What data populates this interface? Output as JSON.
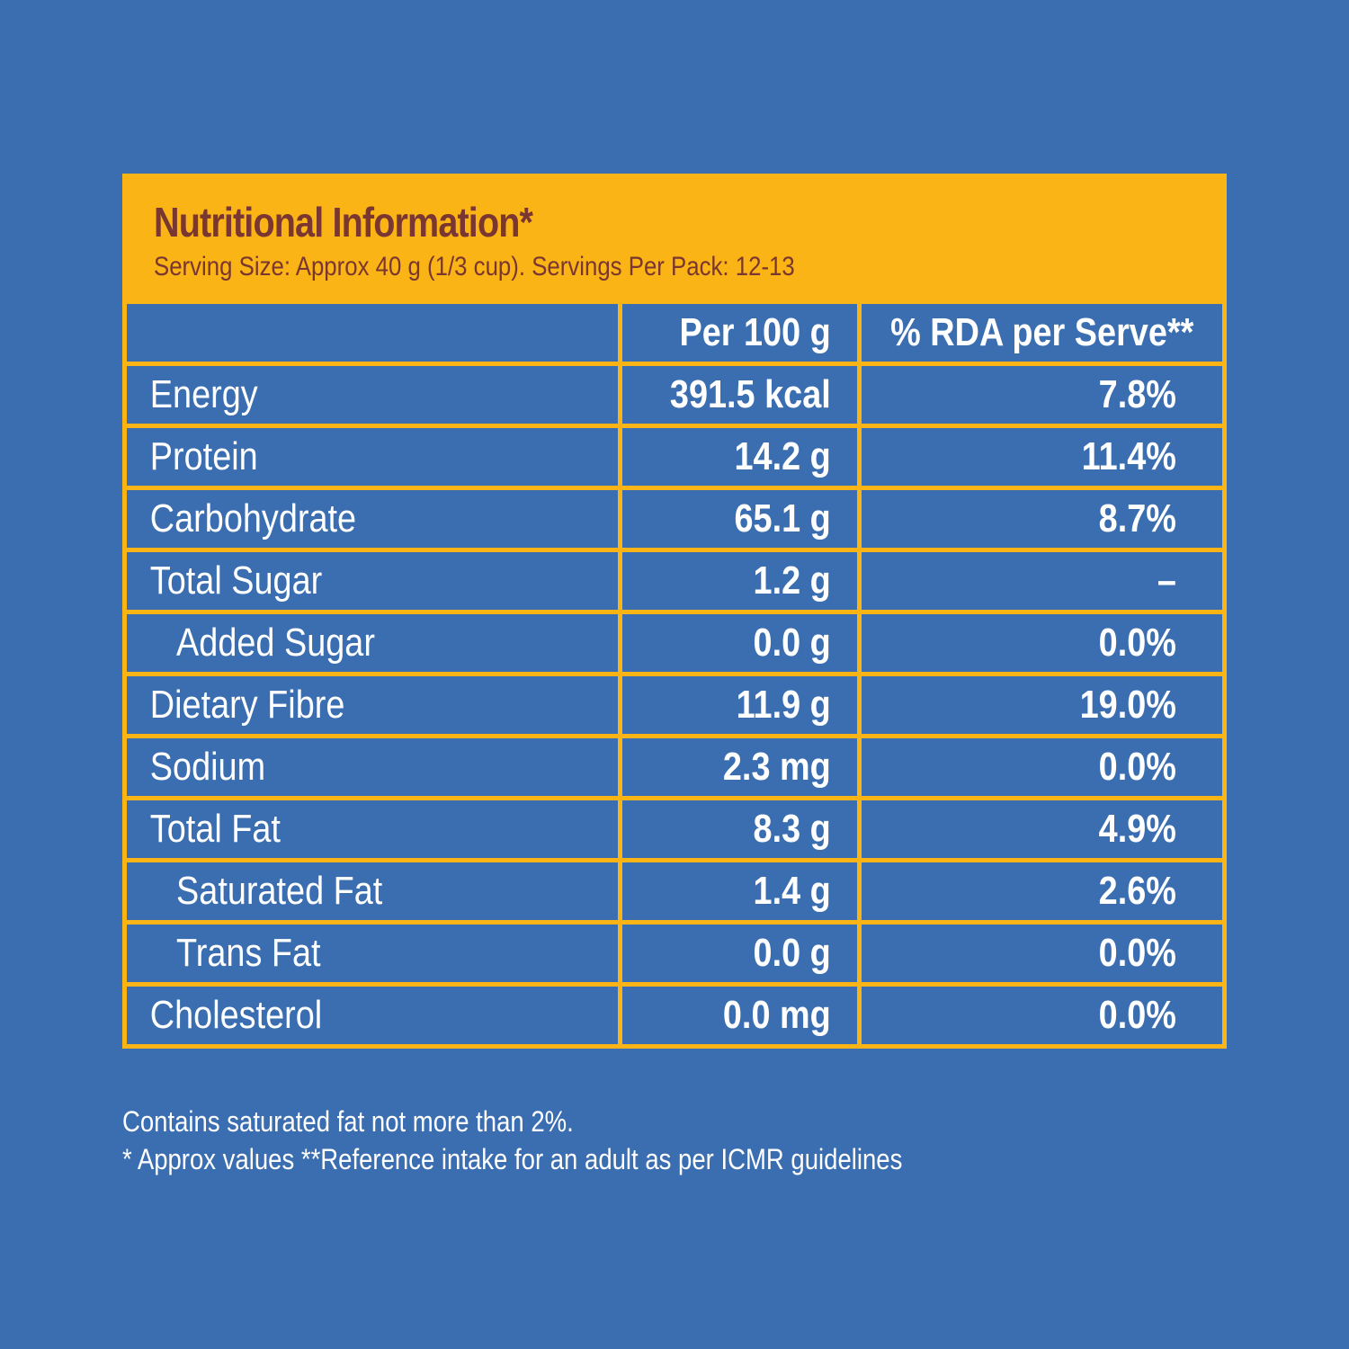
{
  "header": {
    "title": "Nutritional Information*",
    "subtitle": "Serving Size: Approx 40 g (1/3 cup). Servings Per Pack: 12-13"
  },
  "table": {
    "columns": [
      "",
      "Per 100 g",
      "% RDA per Serve**"
    ],
    "rows": [
      {
        "name": "Energy",
        "per100": "391.5 kcal",
        "rda": "7.8%",
        "indent": false
      },
      {
        "name": "Protein",
        "per100": "14.2 g",
        "rda": "11.4%",
        "indent": false
      },
      {
        "name": "Carbohydrate",
        "per100": "65.1 g",
        "rda": "8.7%",
        "indent": false
      },
      {
        "name": "Total Sugar",
        "per100": "1.2 g",
        "rda": "–",
        "indent": false
      },
      {
        "name": "Added Sugar",
        "per100": "0.0 g",
        "rda": "0.0%",
        "indent": true
      },
      {
        "name": "Dietary Fibre",
        "per100": "11.9 g",
        "rda": "19.0%",
        "indent": false
      },
      {
        "name": "Sodium",
        "per100": "2.3 mg",
        "rda": "0.0%",
        "indent": false
      },
      {
        "name": "Total Fat",
        "per100": "8.3 g",
        "rda": "4.9%",
        "indent": false
      },
      {
        "name": "Saturated Fat",
        "per100": "1.4 g",
        "rda": "2.6%",
        "indent": true
      },
      {
        "name": "Trans Fat",
        "per100": "0.0 g",
        "rda": "0.0%",
        "indent": true
      },
      {
        "name": "Cholesterol",
        "per100": "0.0 mg",
        "rda": "0.0%",
        "indent": false
      }
    ]
  },
  "footnotes": [
    "Contains saturated fat not more than 2%.",
    "* Approx values **Reference intake for an adult as per ICMR guidelines"
  ],
  "colors": {
    "background": "#3a6eb0",
    "accent": "#fbb415",
    "title_text": "#7a3630",
    "body_text": "#ffffff"
  }
}
